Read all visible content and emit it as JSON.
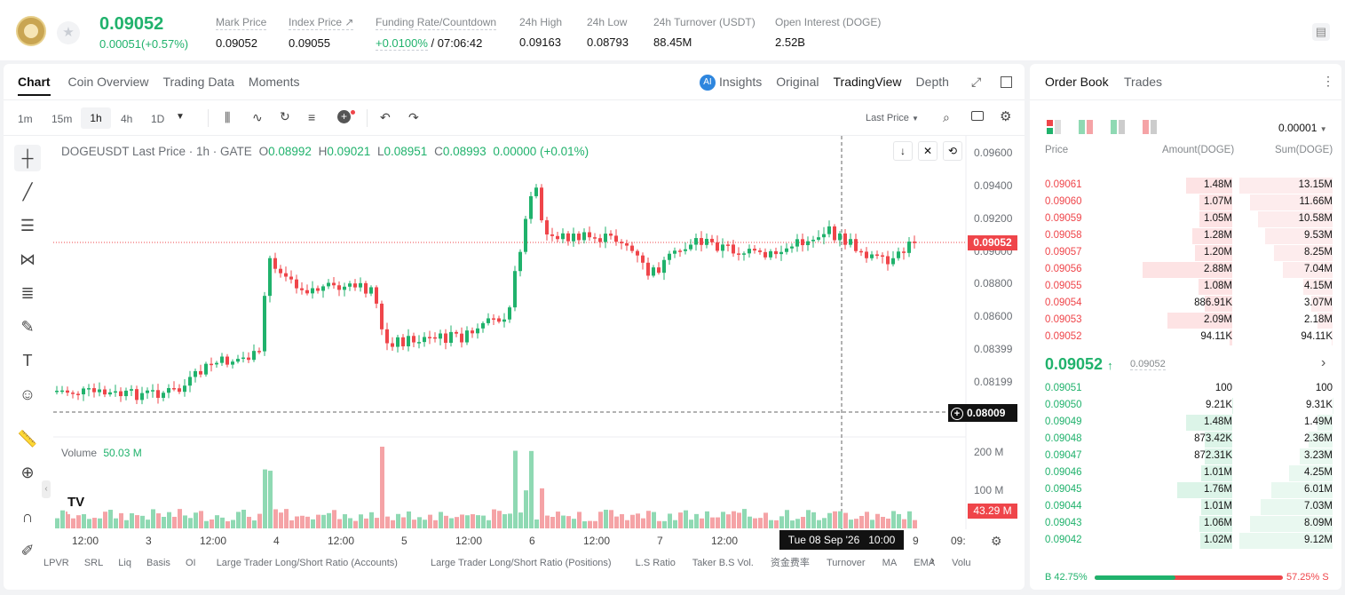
{
  "ticker": {
    "last_price": "0.09052",
    "change": "0.00051(+0.57%)",
    "stats": [
      {
        "label": "Mark Price",
        "value": "0.09052"
      },
      {
        "label": "Index Price ↗",
        "value": "0.09055"
      },
      {
        "label": "Funding Rate/Countdown",
        "value": "+0.0100%",
        "value2": " / 07:06:42"
      },
      {
        "label": "24h High",
        "value": "0.09163"
      },
      {
        "label": "24h Low",
        "value": "0.08793"
      },
      {
        "label": "24h Turnover (USDT)",
        "value": "88.45M"
      },
      {
        "label": "Open Interest (DOGE)",
        "value": "2.52B"
      }
    ]
  },
  "chart_tabs": [
    "Chart",
    "Coin Overview",
    "Trading Data",
    "Moments"
  ],
  "view_tabs": [
    "Insights",
    "Original",
    "TradingView",
    "Depth"
  ],
  "intervals": [
    "1m",
    "15m",
    "1h",
    "4h",
    "1D"
  ],
  "last_price_select": "Last Price",
  "legend": {
    "symbol": "DOGEUSDT Last Price · 1h · GATE",
    "o": "0.08992",
    "h": "0.09021",
    "l": "0.08951",
    "c": "0.08993",
    "chg": "0.00000 (+0.01%)"
  },
  "volume_legend": {
    "label": "Volume",
    "value": "50.03 M"
  },
  "price_axis": [
    "0.09600",
    "0.09400",
    "0.09200",
    "0.09000",
    "0.08800",
    "0.08600",
    "0.08399",
    "0.08199"
  ],
  "current_price_tag": "0.09052",
  "cursor_price_tag": "0.08009",
  "volume_axis": [
    "200 M",
    "100 M"
  ],
  "volume_tag": "43.29 M",
  "time_axis": [
    "12:00",
    "3",
    "12:00",
    "4",
    "12:00",
    "5",
    "12:00",
    "6",
    "12:00",
    "7",
    "12:00",
    "9",
    "09:"
  ],
  "crosshair_time": "Tue 08 Sep '26   10:00",
  "indicators": [
    "LPVR",
    "SRL",
    "Liq",
    "Basis",
    "OI",
    "Large Trader Long/Short Ratio (Accounts)",
    "Large Trader Long/Short Ratio (Positions)",
    "L.S Ratio",
    "Taker B.S Vol.",
    "资金费率",
    "Turnover",
    "MA",
    "EMA",
    "Volu"
  ],
  "orderbook": {
    "tabs": [
      "Order Book",
      "Trades"
    ],
    "precision": "0.00001",
    "headers": [
      "Price",
      "Amount(DOGE)",
      "Sum(DOGE)"
    ],
    "asks": [
      [
        "0.09061",
        "1.48M",
        "13.15M"
      ],
      [
        "0.09060",
        "1.07M",
        "11.66M"
      ],
      [
        "0.09059",
        "1.05M",
        "10.58M"
      ],
      [
        "0.09058",
        "1.28M",
        "9.53M"
      ],
      [
        "0.09057",
        "1.20M",
        "8.25M"
      ],
      [
        "0.09056",
        "2.88M",
        "7.04M"
      ],
      [
        "0.09055",
        "1.08M",
        "4.15M"
      ],
      [
        "0.09054",
        "886.91K",
        "3.07M"
      ],
      [
        "0.09053",
        "2.09M",
        "2.18M"
      ],
      [
        "0.09052",
        "94.11K",
        "94.11K"
      ]
    ],
    "mid_price": "0.09052",
    "mark": "0.09052",
    "bids": [
      [
        "0.09051",
        "100",
        "100"
      ],
      [
        "0.09050",
        "9.21K",
        "9.31K"
      ],
      [
        "0.09049",
        "1.48M",
        "1.49M"
      ],
      [
        "0.09048",
        "873.42K",
        "2.36M"
      ],
      [
        "0.09047",
        "872.31K",
        "3.23M"
      ],
      [
        "0.09046",
        "1.01M",
        "4.25M"
      ],
      [
        "0.09045",
        "1.76M",
        "6.01M"
      ],
      [
        "0.09044",
        "1.01M",
        "7.03M"
      ],
      [
        "0.09043",
        "1.06M",
        "8.09M"
      ],
      [
        "0.09042",
        "1.02M",
        "9.12M"
      ]
    ],
    "buy_ratio": "B 42.75%",
    "sell_ratio": "57.25% S",
    "buy_fraction": 0.4275
  },
  "colors": {
    "up": "#20b26c",
    "down": "#ef454a"
  }
}
